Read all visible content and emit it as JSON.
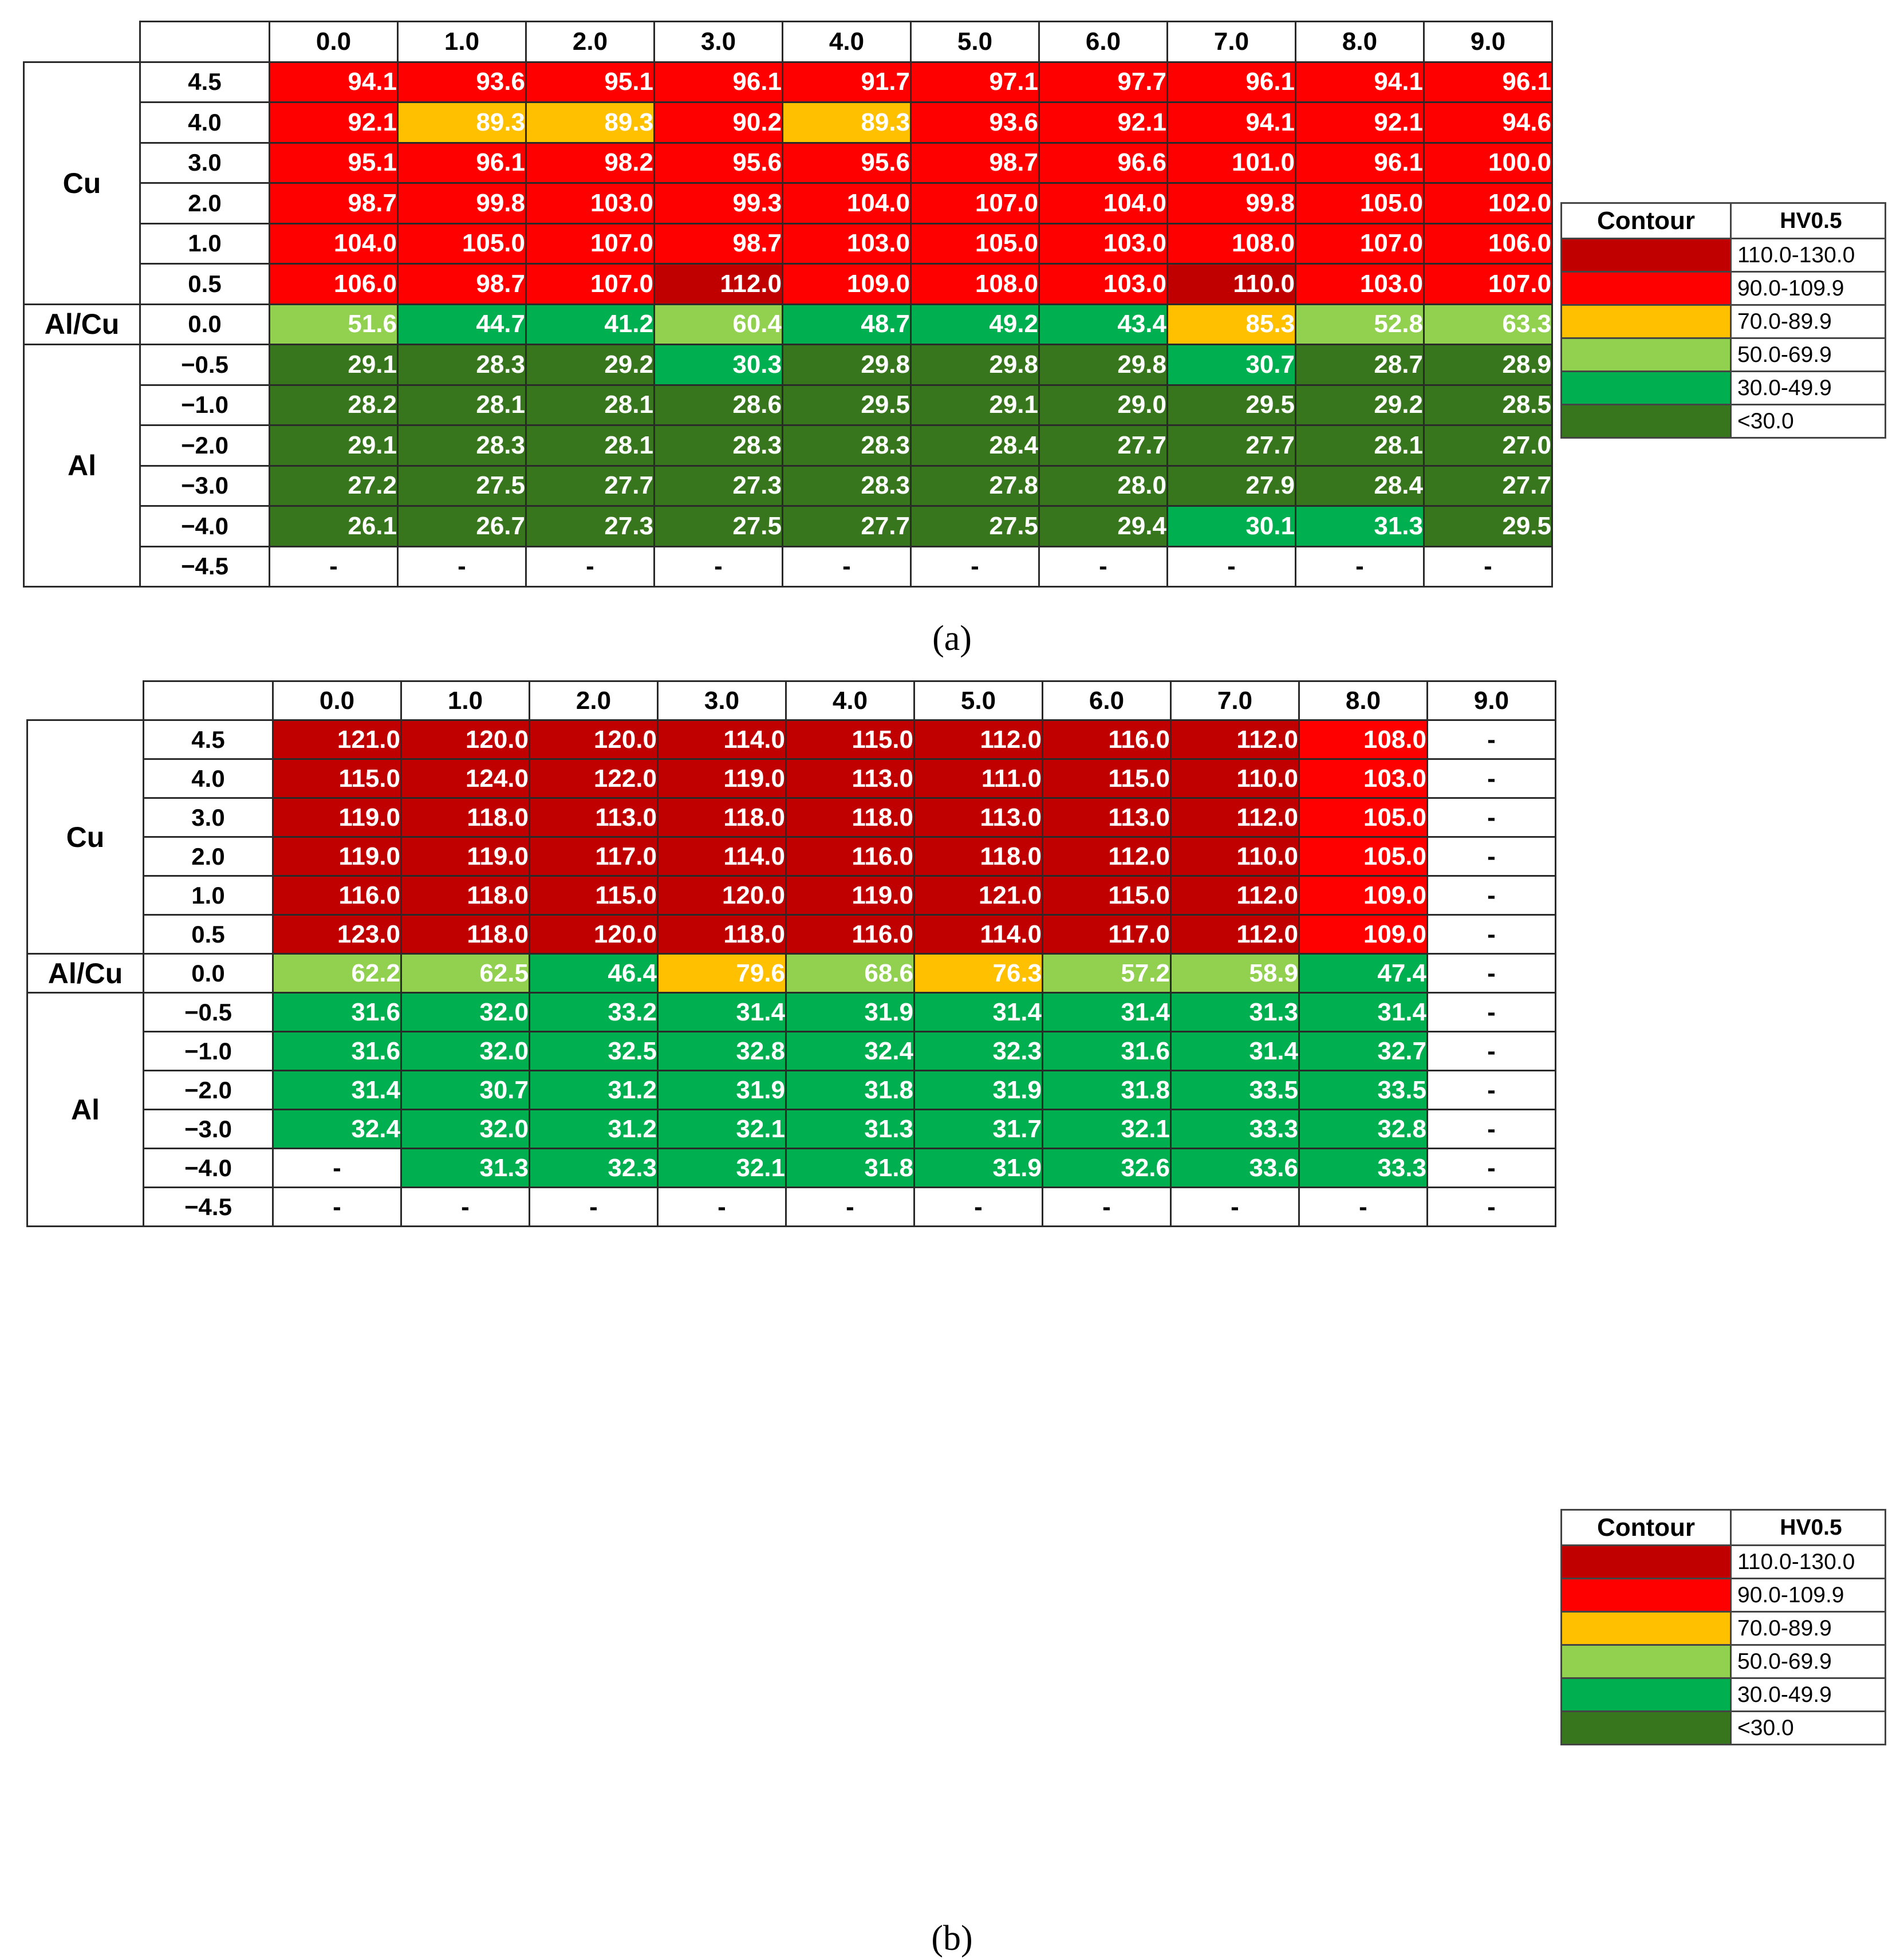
{
  "figure": {
    "captions": {
      "a": "(a)",
      "b": "(b)"
    },
    "legend": {
      "header_contour": "Contour",
      "header_value": "HV0.5",
      "entries": [
        {
          "color": "#c00000",
          "label": "110.0-130.0"
        },
        {
          "color": "#ff0000",
          "label": "90.0-109.9"
        },
        {
          "color": "#ffc000",
          "label": "70.0-89.9"
        },
        {
          "color": "#92d050",
          "label": "50.0-69.9"
        },
        {
          "color": "#00b050",
          "label": "30.0-49.9"
        },
        {
          "color": "#38761d",
          "label": "<30.0"
        }
      ]
    },
    "missing_symbol": "-"
  },
  "chart_data": [
    {
      "type": "heatmap",
      "panel": "(a)",
      "columns": [
        "0.0",
        "1.0",
        "2.0",
        "3.0",
        "4.0",
        "5.0",
        "6.0",
        "7.0",
        "8.0",
        "9.0"
      ],
      "row_groups": [
        {
          "label": "Cu",
          "rows": [
            "4.5",
            "4.0",
            "3.0",
            "2.0",
            "1.0",
            "0.5"
          ]
        },
        {
          "label": "Al/Cu",
          "rows": [
            "0.0"
          ]
        },
        {
          "label": "Al",
          "rows": [
            "−0.5",
            "−1.0",
            "−2.0",
            "−3.0",
            "−4.0",
            "−4.5"
          ]
        }
      ],
      "values": [
        [
          94.1,
          93.6,
          95.1,
          96.1,
          91.7,
          97.1,
          97.7,
          96.1,
          94.1,
          96.1
        ],
        [
          92.1,
          89.3,
          89.3,
          90.2,
          89.3,
          93.6,
          92.1,
          94.1,
          92.1,
          94.6
        ],
        [
          95.1,
          96.1,
          98.2,
          95.6,
          95.6,
          98.7,
          96.6,
          101.0,
          96.1,
          100.0
        ],
        [
          98.7,
          99.8,
          103.0,
          99.3,
          104.0,
          107.0,
          104.0,
          99.8,
          105.0,
          102.0
        ],
        [
          104.0,
          105.0,
          107.0,
          98.7,
          103.0,
          105.0,
          103.0,
          108.0,
          107.0,
          106.0
        ],
        [
          106.0,
          98.7,
          107.0,
          112.0,
          109.0,
          108.0,
          103.0,
          110.0,
          103.0,
          107.0
        ],
        [
          51.6,
          44.7,
          41.2,
          60.4,
          48.7,
          49.2,
          43.4,
          85.3,
          52.8,
          63.3
        ],
        [
          29.1,
          28.3,
          29.2,
          30.3,
          29.8,
          29.8,
          29.8,
          30.7,
          28.7,
          28.9
        ],
        [
          28.2,
          28.1,
          28.1,
          28.6,
          29.5,
          29.1,
          29.0,
          29.5,
          29.2,
          28.5
        ],
        [
          29.1,
          28.3,
          28.1,
          28.3,
          28.3,
          28.4,
          27.7,
          27.7,
          28.1,
          27.0
        ],
        [
          27.2,
          27.5,
          27.7,
          27.3,
          28.3,
          27.8,
          28.0,
          27.9,
          28.4,
          27.7
        ],
        [
          26.1,
          26.7,
          27.3,
          27.5,
          27.7,
          27.5,
          29.4,
          30.1,
          31.3,
          29.5
        ],
        [
          null,
          null,
          null,
          null,
          null,
          null,
          null,
          null,
          null,
          null
        ]
      ]
    },
    {
      "type": "heatmap",
      "panel": "(b)",
      "columns": [
        "0.0",
        "1.0",
        "2.0",
        "3.0",
        "4.0",
        "5.0",
        "6.0",
        "7.0",
        "8.0",
        "9.0"
      ],
      "row_groups": [
        {
          "label": "Cu",
          "rows": [
            "4.5",
            "4.0",
            "3.0",
            "2.0",
            "1.0",
            "0.5"
          ]
        },
        {
          "label": "Al/Cu",
          "rows": [
            "0.0"
          ]
        },
        {
          "label": "Al",
          "rows": [
            "−0.5",
            "−1.0",
            "−2.0",
            "−3.0",
            "−4.0",
            "−4.5"
          ]
        }
      ],
      "values": [
        [
          121.0,
          120.0,
          120.0,
          114.0,
          115.0,
          112.0,
          116.0,
          112.0,
          108.0,
          null
        ],
        [
          115.0,
          124.0,
          122.0,
          119.0,
          113.0,
          111.0,
          115.0,
          110.0,
          103.0,
          null
        ],
        [
          119.0,
          118.0,
          113.0,
          118.0,
          118.0,
          113.0,
          113.0,
          112.0,
          105.0,
          null
        ],
        [
          119.0,
          119.0,
          117.0,
          114.0,
          116.0,
          118.0,
          112.0,
          110.0,
          105.0,
          null
        ],
        [
          116.0,
          118.0,
          115.0,
          120.0,
          119.0,
          121.0,
          115.0,
          112.0,
          109.0,
          null
        ],
        [
          123.0,
          118.0,
          120.0,
          118.0,
          116.0,
          114.0,
          117.0,
          112.0,
          109.0,
          null
        ],
        [
          62.2,
          62.5,
          46.4,
          79.6,
          68.6,
          76.3,
          57.2,
          58.9,
          47.4,
          null
        ],
        [
          31.6,
          32.0,
          33.2,
          31.4,
          31.9,
          31.4,
          31.4,
          31.3,
          31.4,
          null
        ],
        [
          31.6,
          32.0,
          32.5,
          32.8,
          32.4,
          32.3,
          31.6,
          31.4,
          32.7,
          null
        ],
        [
          31.4,
          30.7,
          31.2,
          31.9,
          31.8,
          31.9,
          31.8,
          33.5,
          33.5,
          null
        ],
        [
          32.4,
          32.0,
          31.2,
          32.1,
          31.3,
          31.7,
          32.1,
          33.3,
          32.8,
          null
        ],
        [
          null,
          31.3,
          32.3,
          32.1,
          31.8,
          31.9,
          32.6,
          33.6,
          33.3,
          null
        ],
        [
          null,
          null,
          null,
          null,
          null,
          null,
          null,
          null,
          null,
          null
        ]
      ]
    }
  ]
}
